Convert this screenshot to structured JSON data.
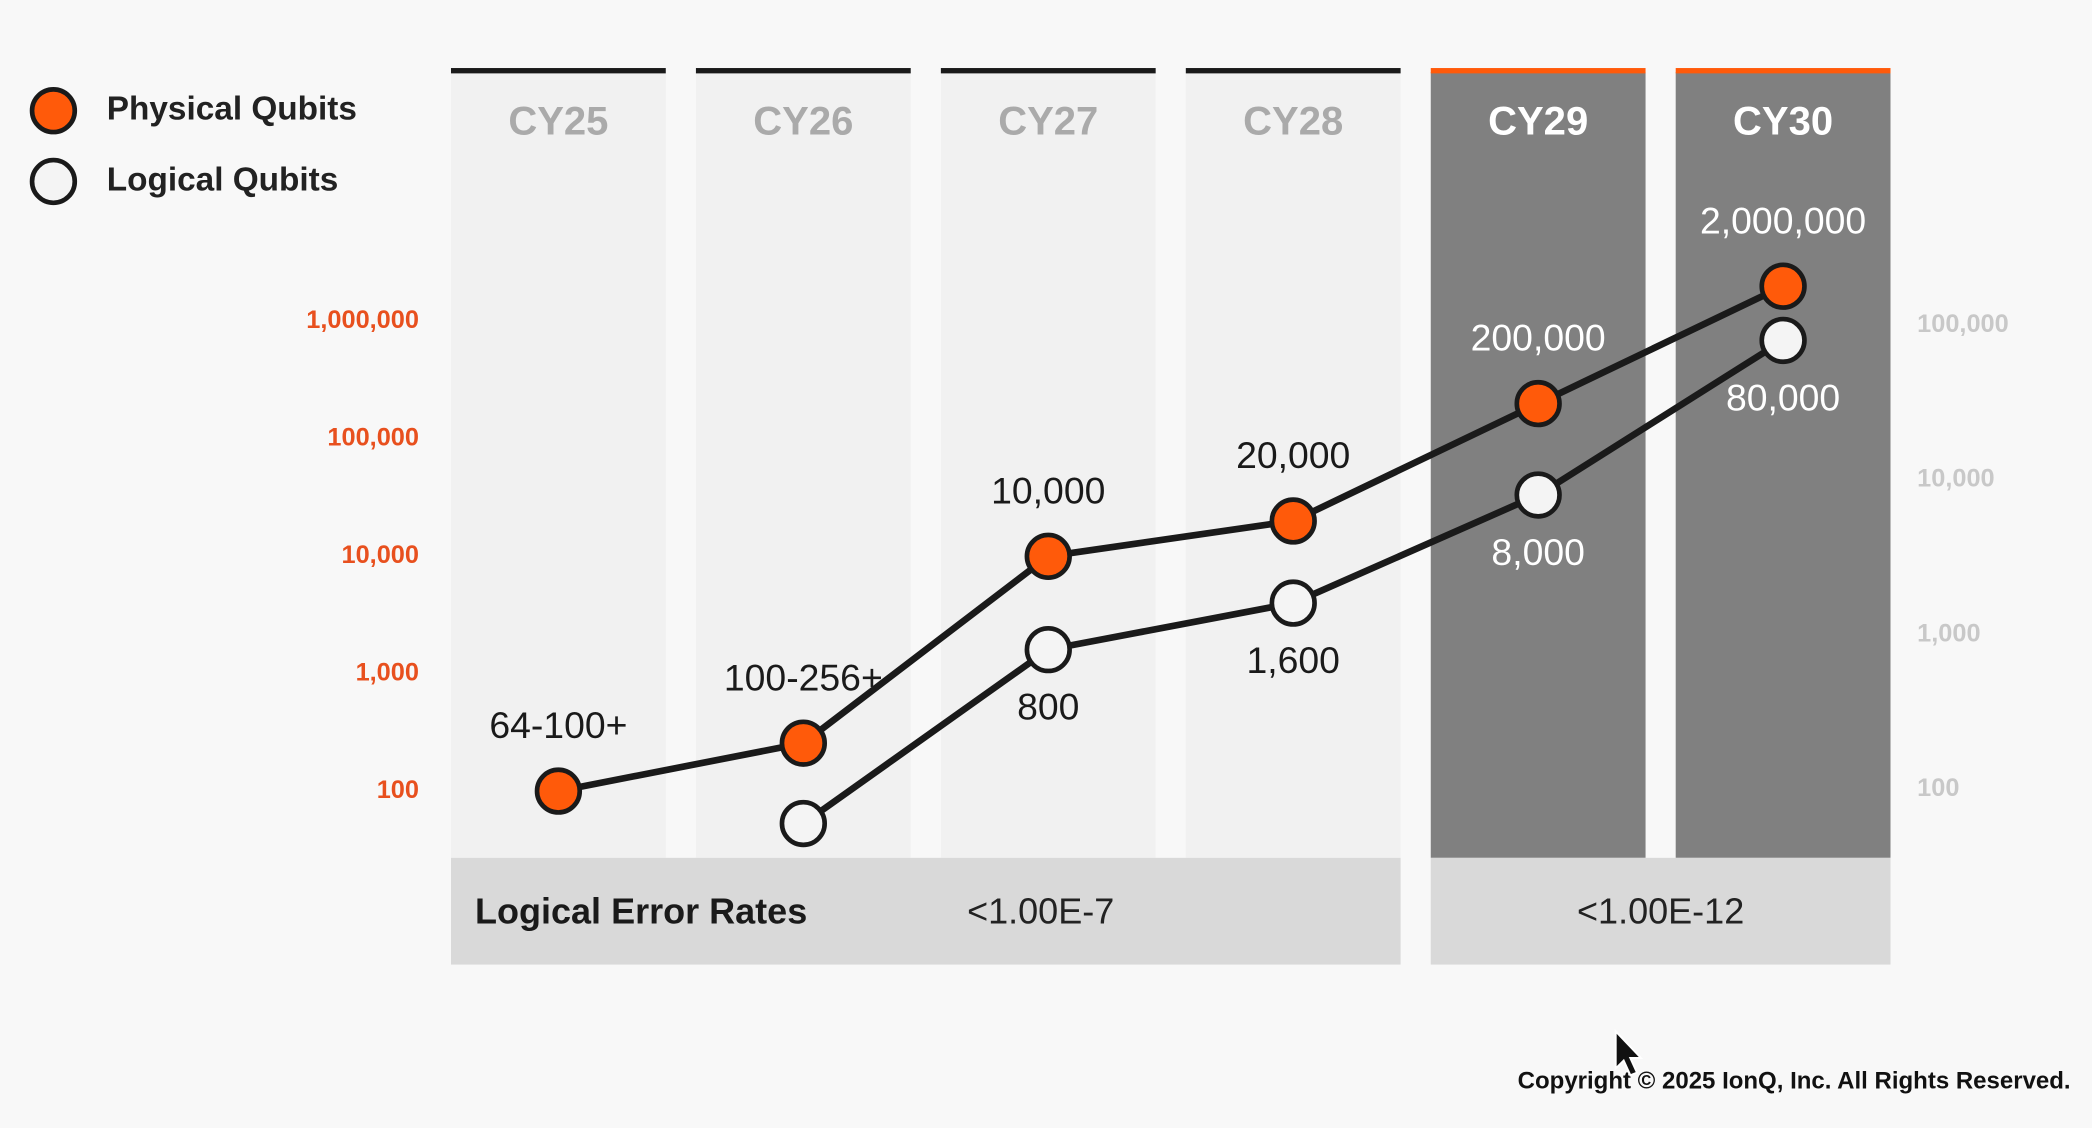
{
  "chart_data": {
    "type": "line",
    "categories": [
      "CY25",
      "CY26",
      "CY27",
      "CY28",
      "CY29",
      "CY30"
    ],
    "highlighted": [
      4,
      5
    ],
    "log_scale": true,
    "ylim": [
      27,
      130000000
    ],
    "yticks": [
      100,
      {
        "value": 1000,
        "label": "1,000"
      },
      {
        "value": 10000,
        "label": "10,000"
      },
      {
        "value": 100000,
        "label": "100,000"
      },
      {
        "value": 1000000,
        "label": "1,000,000"
      }
    ],
    "y2lim": [
      36,
      4270000
    ],
    "y2ticks": [
      100,
      {
        "value": 1000,
        "label": "1,000"
      },
      {
        "value": 10000,
        "label": "10,000"
      },
      {
        "value": 100000,
        "label": "100,000"
      }
    ],
    "legend": "top-left",
    "series": [
      {
        "name": "Physical Qubits",
        "color": "#ff5a0a",
        "axis": "y",
        "values": [
          100,
          256,
          10000,
          20000,
          200000,
          2000000
        ],
        "value_labels": [
          "64-100+",
          "100-256+",
          "10,000",
          "20,000",
          "200,000",
          "2,000,000"
        ]
      },
      {
        "name": "Logical Qubits",
        "color": "#f4f4f4",
        "axis": "y2",
        "values": [
          null,
          60,
          800,
          1600,
          8000,
          80000
        ],
        "value_labels": [
          null,
          null,
          "800",
          "1,600",
          "8,000",
          "80,000"
        ]
      }
    ],
    "footer_row": {
      "label": "Logical Error Rates",
      "cells": [
        {
          "text": "<1.00E-7",
          "columns": [
            0,
            1,
            2,
            3
          ]
        },
        {
          "text": "<1.00E-12",
          "columns": [
            4,
            5
          ]
        }
      ]
    },
    "copyright": "Copyright © 2025 IonQ, Inc. All Rights Reserved."
  }
}
